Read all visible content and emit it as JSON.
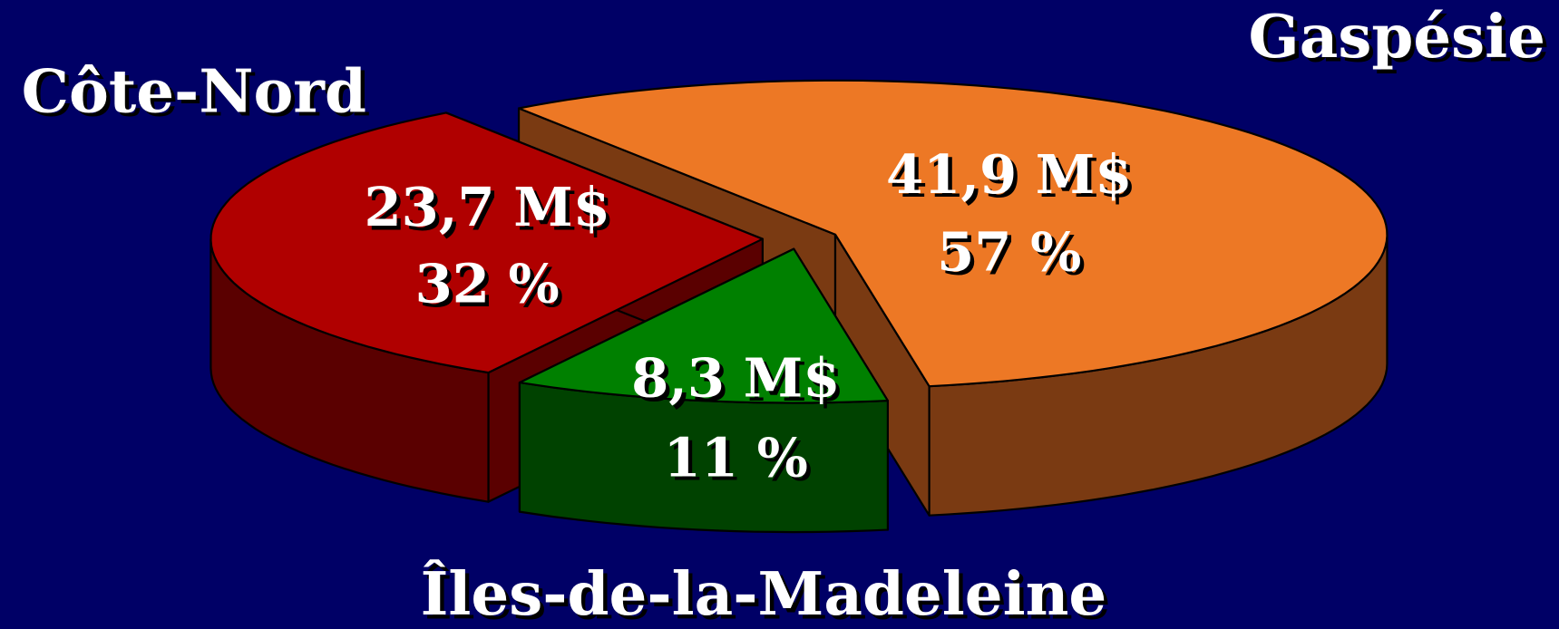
{
  "chart_data": {
    "type": "pie3d",
    "categories": [
      "Gaspésie",
      "Îles-de-la-Madeleine",
      "Côte-Nord"
    ],
    "values": [
      57,
      11,
      32
    ],
    "value_labels": [
      "57 %",
      "11 %",
      "32 %"
    ],
    "amounts": [
      41.9,
      8.3,
      23.7
    ],
    "amount_labels": [
      "41,9 M$",
      "8,3 M$",
      "23,7 M$"
    ],
    "colors": [
      "#ed7825",
      "#008000",
      "#b00000"
    ],
    "side_colors": [
      "#7a3a12",
      "#004200",
      "#5a0000"
    ]
  }
}
